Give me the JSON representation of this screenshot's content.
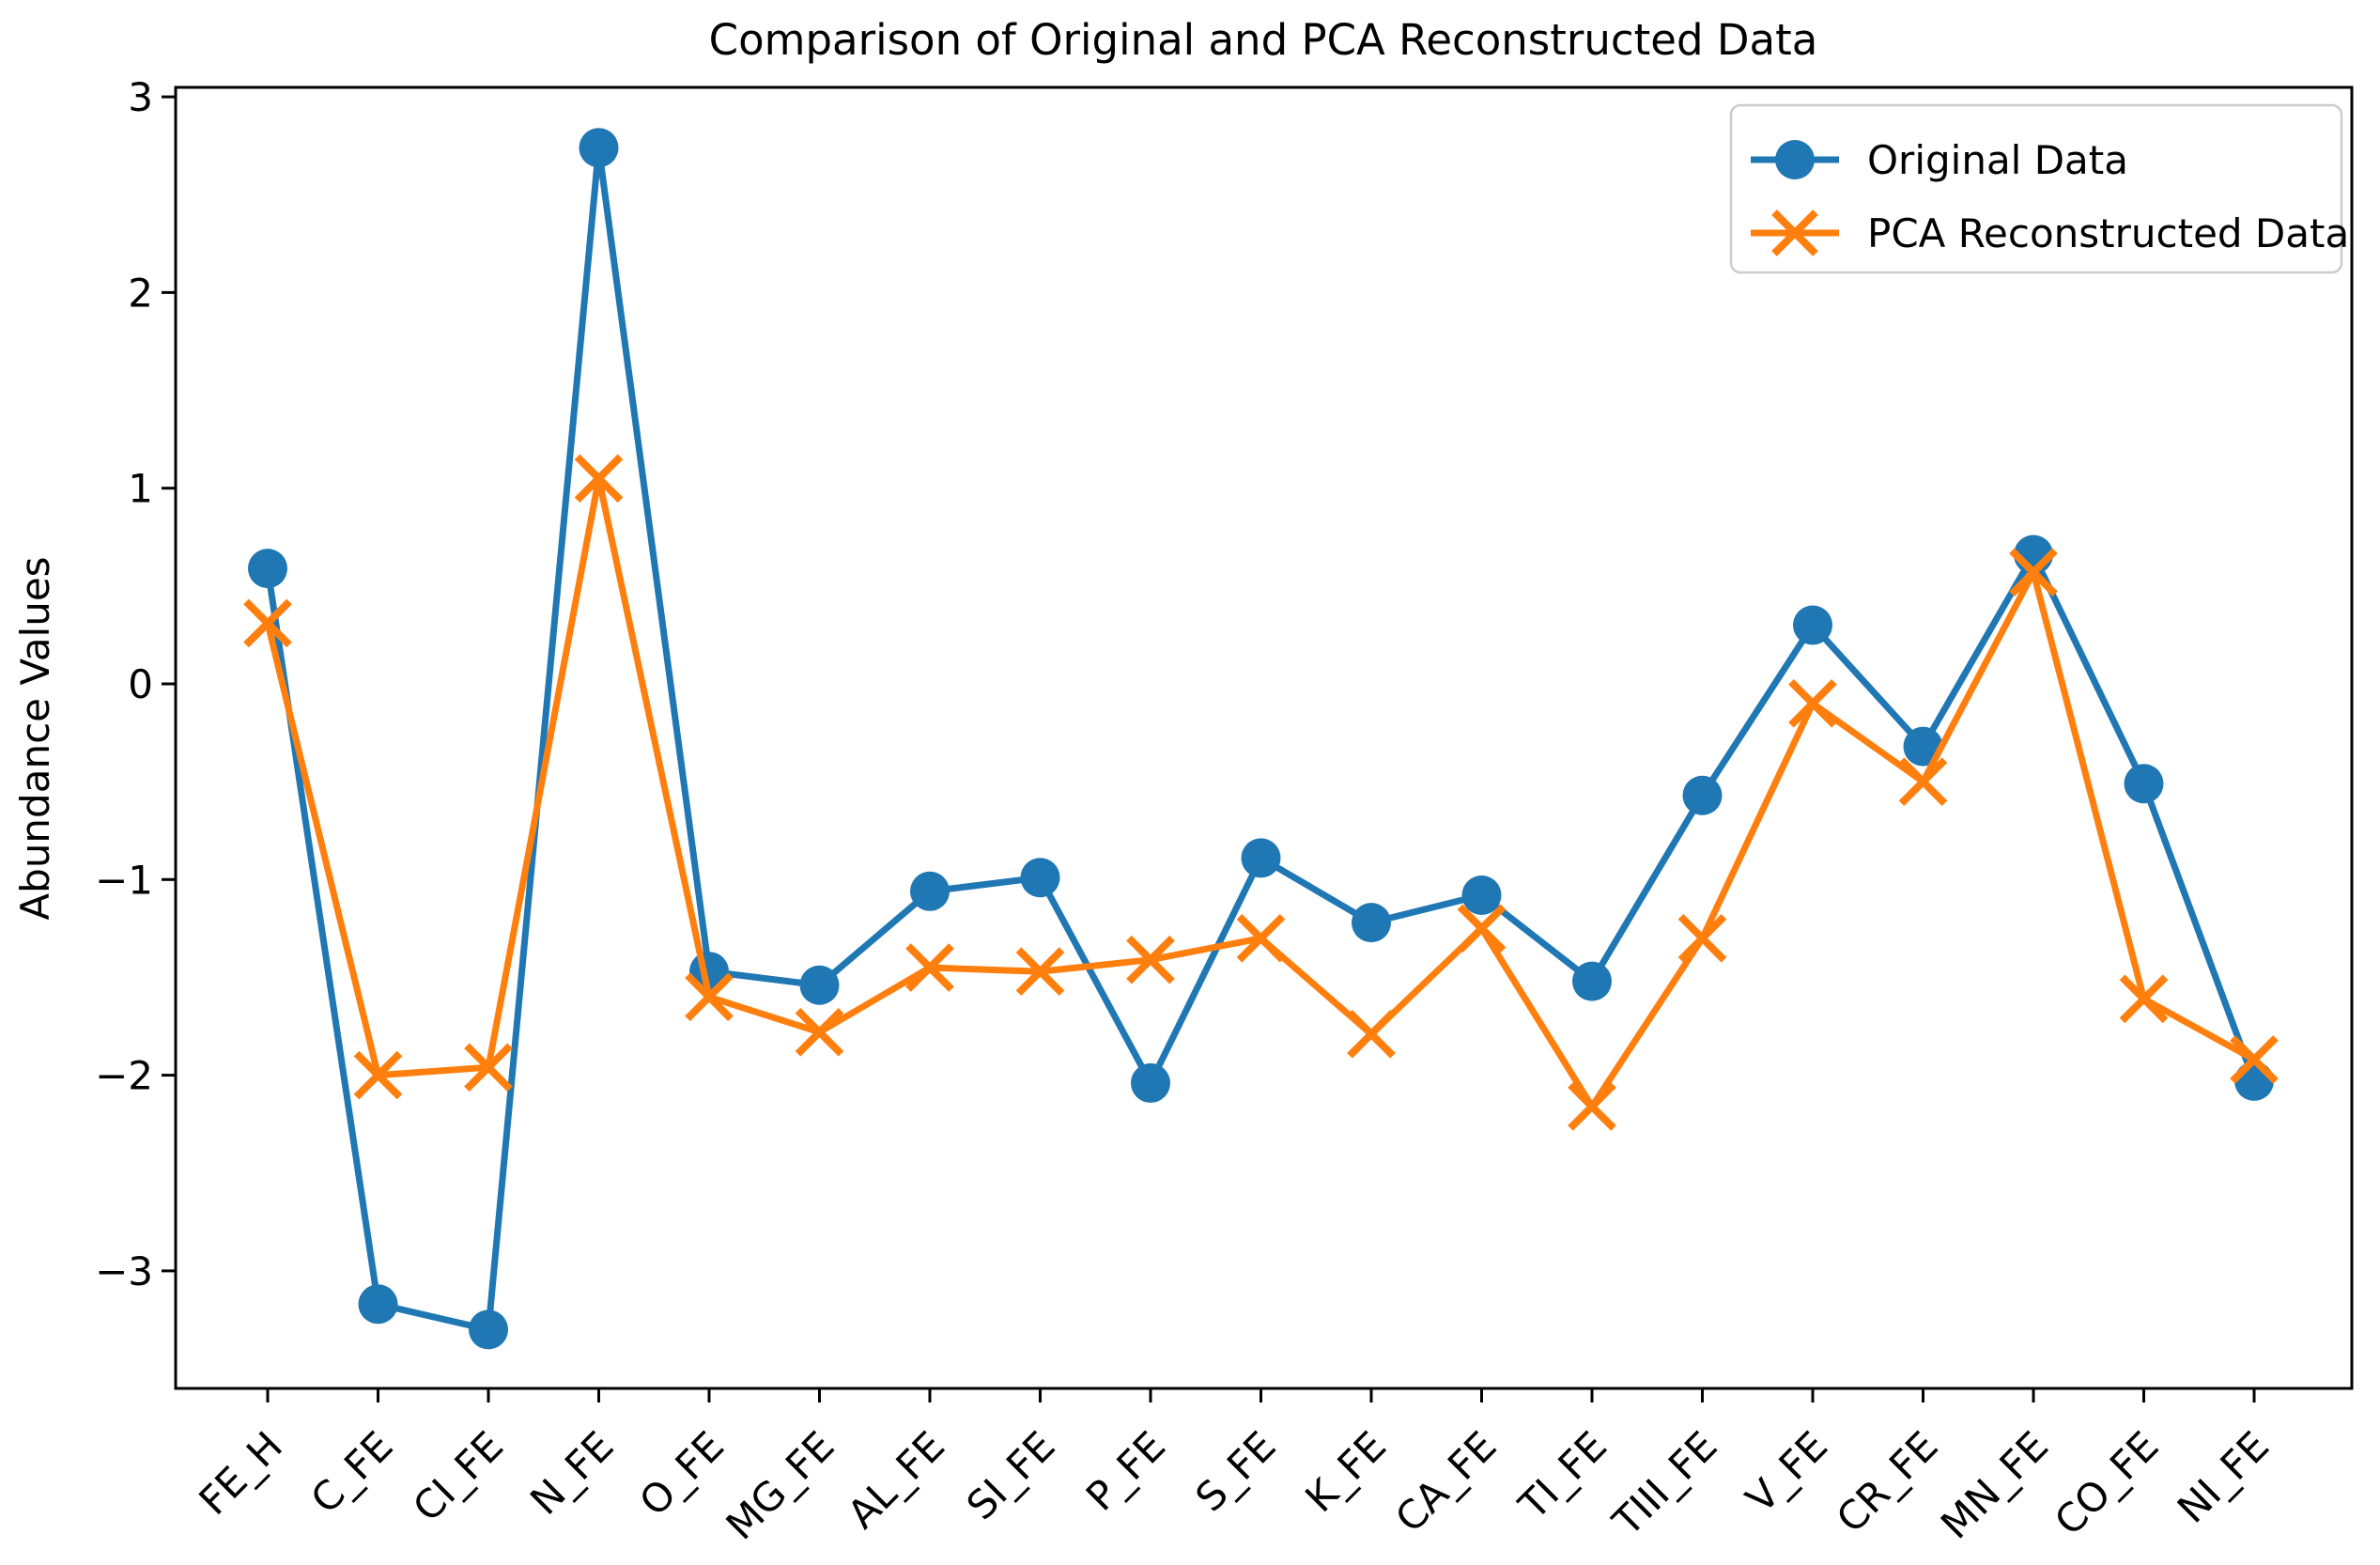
{
  "chart_data": {
    "type": "line",
    "title": "Comparison of Original and PCA Reconstructed Data",
    "xlabel": "",
    "ylabel": "Abundance Values",
    "categories": [
      "FE_H",
      "C_FE",
      "CI_FE",
      "N_FE",
      "O_FE",
      "MG_FE",
      "AL_FE",
      "SI_FE",
      "P_FE",
      "S_FE",
      "K_FE",
      "CA_FE",
      "TI_FE",
      "TIII_FE",
      "V_FE",
      "CR_FE",
      "MN_FE",
      "CO_FE",
      "NI_FE"
    ],
    "series": [
      {
        "name": "Original Data",
        "color": "#1f77b4",
        "marker": "circle",
        "values": [
          0.59,
          -3.17,
          -3.3,
          2.74,
          -1.47,
          -1.54,
          -1.06,
          -0.99,
          -2.04,
          -0.89,
          -1.22,
          -1.08,
          -1.52,
          -0.57,
          0.3,
          -0.32,
          0.66,
          -0.51,
          -2.03
        ]
      },
      {
        "name": "PCA Reconstructed Data",
        "color": "#ff7f0e",
        "marker": "x",
        "values": [
          0.31,
          -2.0,
          -1.96,
          1.05,
          -1.6,
          -1.78,
          -1.45,
          -1.47,
          -1.41,
          -1.3,
          -1.79,
          -1.25,
          -2.16,
          -1.3,
          -0.1,
          -0.5,
          0.57,
          -1.61,
          -1.92
        ]
      }
    ],
    "yticks": [
      -3,
      -2,
      -1,
      0,
      1,
      2,
      3
    ],
    "ylim": [
      -3.6,
      3.05
    ],
    "grid": false,
    "legend_position": "upper right",
    "background_color": "#ffffff",
    "spine_color": "#000000"
  }
}
